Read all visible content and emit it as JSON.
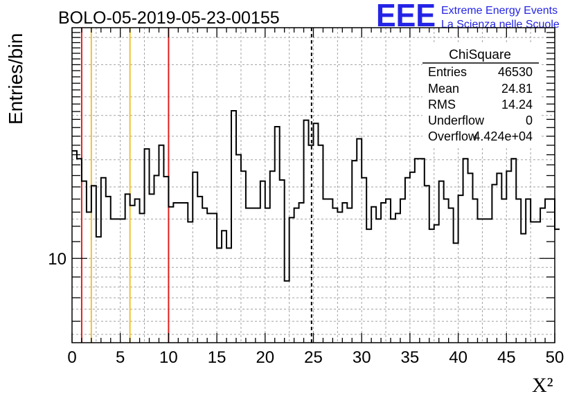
{
  "header": {
    "title": "BOLO-05-2019-05-23-00155",
    "logo_text": "EEE",
    "logo_line1": "Extreme Energy Events",
    "logo_line2": "La Scienza nelle Scuole"
  },
  "stats_box": {
    "title": "ChiSquare",
    "rows": [
      {
        "label": "Entries",
        "value": "46530"
      },
      {
        "label": "Mean",
        "value": "24.81"
      },
      {
        "label": "RMS",
        "value": "14.24"
      },
      {
        "label": "Underflow",
        "value": "0"
      },
      {
        "label": "Overflow",
        "value": "4.424e+04"
      }
    ]
  },
  "colors": {
    "red": "#e0201b",
    "yellow": "#f2c230",
    "logo": "#2424e6",
    "grid": "#a0a0a0",
    "line": "#000000"
  },
  "chart_data": {
    "type": "histogram",
    "title": "BOLO-05-2019-05-23-00155",
    "xlabel": "X²",
    "ylabel": "Entries/bin",
    "xlim": [
      0,
      50
    ],
    "ylim": [
      6.2,
      37
    ],
    "yscale": "log",
    "bin_width": 0.5,
    "x_ticks": [
      0,
      5,
      10,
      15,
      20,
      25,
      30,
      35,
      40,
      45,
      50
    ],
    "x_tick_labels": [
      "0",
      "5",
      "10",
      "15",
      "20",
      "25",
      "30",
      "35",
      "40",
      "45",
      "50"
    ],
    "y_ticks_labeled": [
      10
    ],
    "y_tick_labels": [
      "10"
    ],
    "bin_values": [
      18.4,
      17.6,
      15.5,
      13.0,
      15.1,
      11.3,
      15.8,
      14.2,
      12.5,
      12.5,
      12.5,
      14.4,
      13.5,
      14.0,
      12.9,
      18.6,
      14.4,
      16.0,
      19.0,
      15.9,
      13.4,
      13.7,
      13.7,
      13.7,
      12.3,
      16.3,
      14.2,
      13.3,
      12.9,
      12.9,
      10.6,
      11.7,
      10.6,
      23.1,
      18.0,
      16.4,
      13.3,
      13.3,
      13.3,
      15.5,
      13.3,
      16.4,
      21.1,
      15.6,
      8.8,
      12.6,
      13.3,
      13.7,
      21.9,
      19.0,
      21.5,
      19.0,
      14.0,
      14.0,
      13.3,
      13.0,
      13.7,
      13.3,
      17.4,
      19.7,
      15.8,
      11.8,
      13.4,
      12.5,
      13.7,
      14.0,
      12.5,
      12.9,
      14.0,
      15.8,
      16.3,
      17.6,
      17.6,
      15.1,
      11.8,
      12.1,
      15.5,
      14.0,
      13.3,
      10.9,
      14.3,
      17.6,
      16.2,
      14.0,
      12.5,
      12.5,
      12.5,
      15.2,
      16.2,
      14.0,
      16.4,
      17.6,
      14.0,
      11.5,
      14.0,
      12.3,
      12.3,
      13.3,
      14.0,
      14.0,
      11.8
    ],
    "vertical_lines": [
      {
        "x": 1,
        "color": "red",
        "style": "solid"
      },
      {
        "x": 2,
        "color": "yellow",
        "style": "solid"
      },
      {
        "x": 6,
        "color": "yellow",
        "style": "solid"
      },
      {
        "x": 10,
        "color": "red",
        "style": "solid"
      },
      {
        "x": 24.81,
        "color": "black",
        "style": "dashed"
      }
    ],
    "grid": true
  }
}
